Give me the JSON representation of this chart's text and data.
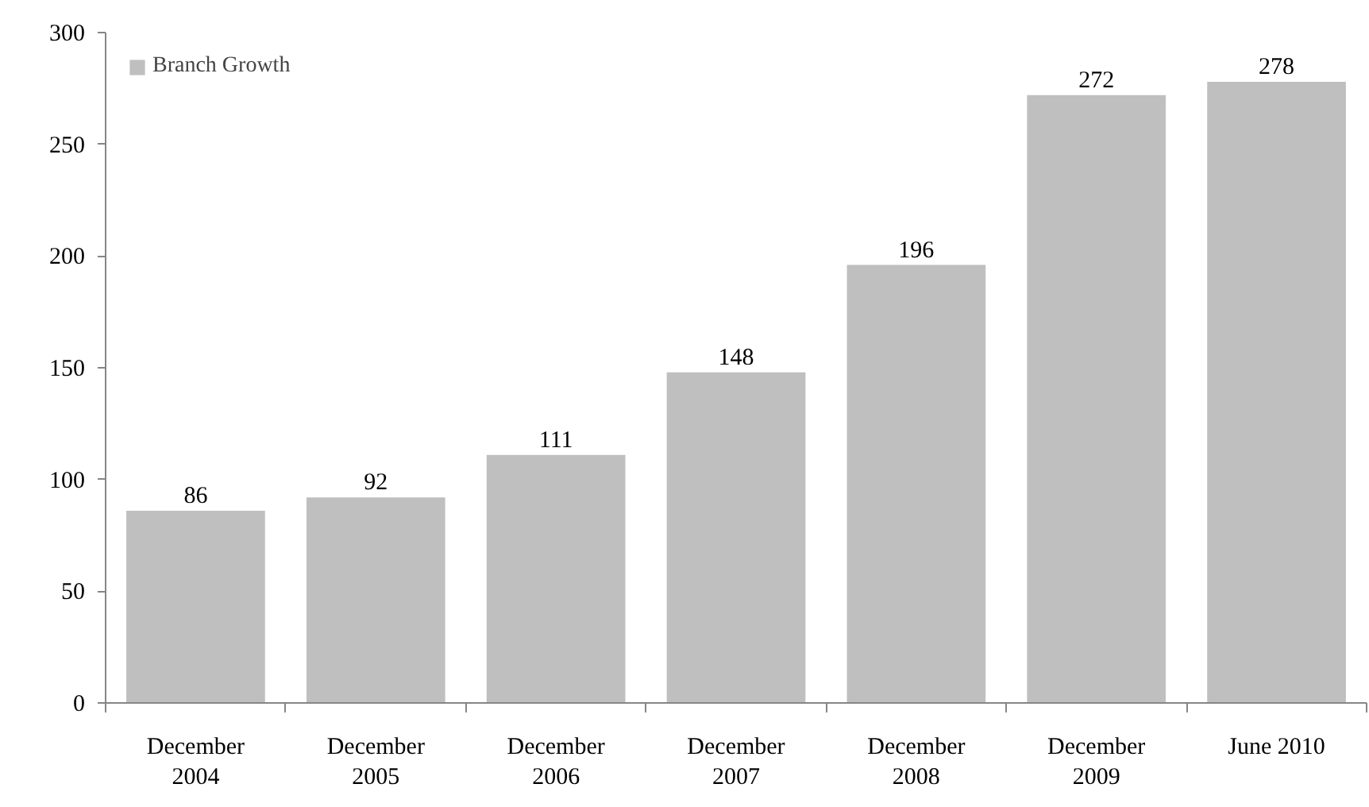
{
  "chart_data": {
    "type": "bar",
    "categories": [
      "December 2004",
      "December 2005",
      "December 2006",
      "December 2007",
      "December 2008",
      "December 2009",
      "June 2010"
    ],
    "series": [
      {
        "name": "Branch Growth",
        "color": "#bfbfbf",
        "values": [
          86,
          92,
          111,
          148,
          196,
          272,
          278
        ]
      }
    ],
    "ylim": [
      0,
      300
    ],
    "yticks": [
      0,
      50,
      100,
      150,
      200,
      250,
      300
    ],
    "data_labels": true,
    "legend": "top left",
    "grid": false
  }
}
